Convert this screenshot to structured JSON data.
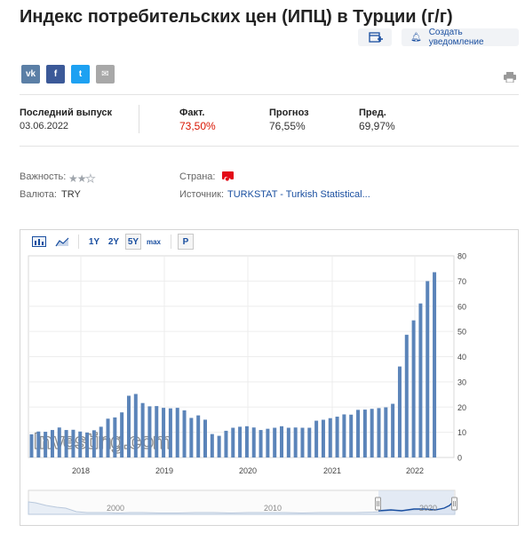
{
  "header": {
    "title": "Индекс потребительских цен (ИПЦ) в Турции (г/г)",
    "alert_label": "Создать уведомление"
  },
  "share": {
    "vk": "vk",
    "facebook": "f",
    "twitter": "t",
    "email": "✉"
  },
  "release": {
    "latest_label": "Последний выпуск",
    "latest_date": "03.06.2022",
    "actual_label": "Факт.",
    "actual_value": "73,50%",
    "forecast_label": "Прогноз",
    "forecast_value": "76,55%",
    "previous_label": "Пред.",
    "previous_value": "69,97%"
  },
  "meta": {
    "importance_label": "Важность:",
    "importance_level": 2,
    "importance_max": 3,
    "currency_label": "Валюта:",
    "currency_value": "TRY",
    "country_label": "Страна:",
    "source_label": "Источник:",
    "source_value": "TURKSTAT - Turkish Statistical..."
  },
  "toolbar": {
    "ranges": [
      "1Y",
      "2Y",
      "5Y",
      "max"
    ],
    "selected_range": "5Y",
    "p_label": "P"
  },
  "colors": {
    "bar": "#5b84b9",
    "accent": "#1a4fa0",
    "red": "#d91400"
  },
  "chart_data": {
    "type": "bar",
    "unit": "%",
    "watermark": "Investing.com",
    "x_tick_labels": [
      "2018",
      "2019",
      "2020",
      "2021",
      "2022"
    ],
    "y_ticks": [
      0,
      10,
      20,
      30,
      40,
      50,
      60,
      70,
      80
    ],
    "ylim": [
      0,
      80
    ],
    "series": [
      {
        "values": [
          9.2,
          10.3,
          10.2,
          10.9,
          11.9,
          10.9,
          11.0,
          10.3,
          9.9,
          10.8,
          12.2,
          15.4,
          15.9,
          17.9,
          24.5,
          25.2,
          21.6,
          20.3,
          20.4,
          19.7,
          19.5,
          19.7,
          18.7,
          15.7,
          16.7,
          15.0,
          9.3,
          8.6,
          10.6,
          11.8,
          12.2,
          12.4,
          11.9,
          10.9,
          11.4,
          11.8,
          12.4,
          11.8,
          11.9,
          11.8,
          11.8,
          14.6,
          14.97,
          15.6,
          16.2,
          17.1,
          17.0,
          18.9,
          19.0,
          19.3,
          19.6,
          19.9,
          21.3,
          36.1,
          48.7,
          54.4,
          61.1,
          69.97,
          73.5
        ]
      }
    ],
    "navigator": {
      "x_tick_labels": [
        "2000",
        "2010",
        "2020"
      ]
    }
  }
}
